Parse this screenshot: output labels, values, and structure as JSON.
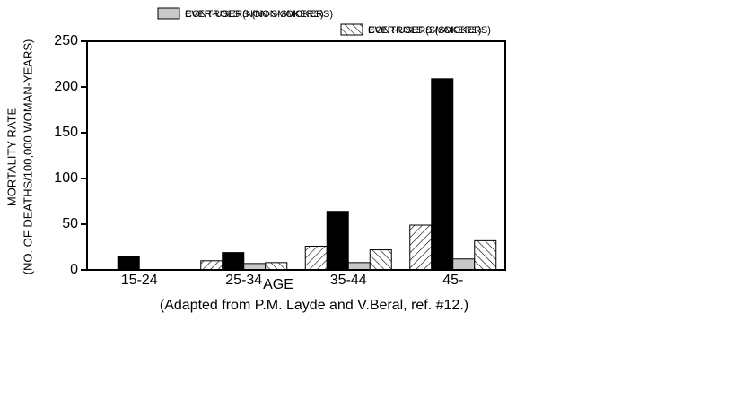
{
  "chart_data": {
    "type": "bar",
    "categories": [
      "15-24",
      "25-34",
      "35-44",
      "45-"
    ],
    "series": [
      {
        "name": "EVER-USERS (NON-SMOKERS)",
        "color": "#000000",
        "pattern": "forward-hatch",
        "values": [
          0,
          10,
          26,
          49
        ]
      },
      {
        "name": "EVER-USERS (SMOKERS)",
        "color": "#000000",
        "pattern": "solid",
        "values": [
          15,
          19,
          64,
          209
        ]
      },
      {
        "name": "CONTROLS (NON-SMOKERS)",
        "color": "#c8c8c8",
        "pattern": "solid",
        "values": [
          0,
          7,
          8,
          12
        ]
      },
      {
        "name": "CONTROLS (SMOKERS)",
        "color": "#000000",
        "pattern": "back-hatch",
        "values": [
          0,
          8,
          22,
          32
        ]
      }
    ],
    "ylim": [
      0,
      250
    ],
    "yticks": [
      0,
      50,
      100,
      150,
      200,
      250
    ],
    "ylabel": [
      "MORTALITY RATE",
      "(NO. OF DEATHS/100,000 WOMAN-YEARS)"
    ],
    "xlabel": "AGE",
    "note": "(Adapted from P.M. Layde and V.Beral, ref. #12.)"
  }
}
